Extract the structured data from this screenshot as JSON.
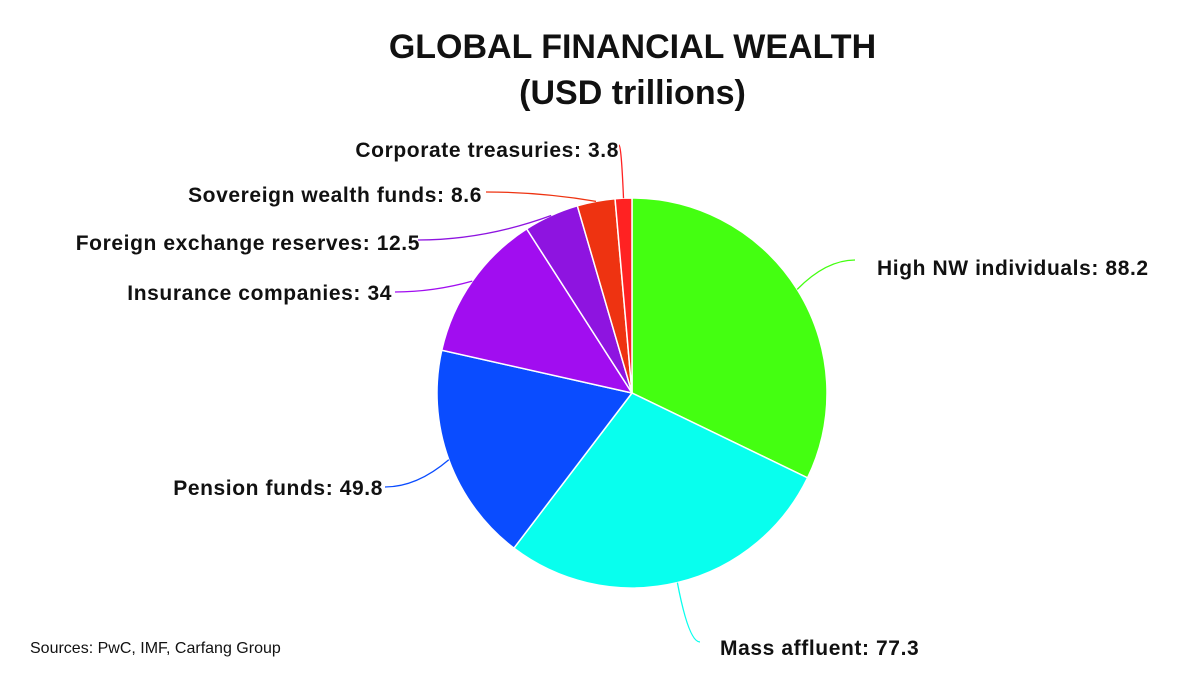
{
  "title": {
    "line1": "GLOBAL FINANCIAL WEALTH",
    "line2": "(USD trillions)"
  },
  "source": "Sources: PwC, IMF, Carfang Group",
  "chart_data": {
    "type": "pie",
    "title": "GLOBAL FINANCIAL WEALTH",
    "subtitle": "(USD trillions)",
    "slices": [
      {
        "name": "High NW individuals",
        "value": 88.2,
        "label": "High NW individuals: 88.2",
        "color": "#44ff11"
      },
      {
        "name": "Mass affluent",
        "value": 77.3,
        "label": "Mass affluent: 77.3",
        "color": "#08ffee"
      },
      {
        "name": "Pension funds",
        "value": 49.8,
        "label": "Pension funds: 49.8",
        "color": "#0a4cff"
      },
      {
        "name": "Insurance companies",
        "value": 34,
        "label": "Insurance companies: 34",
        "color": "#a10df0"
      },
      {
        "name": "Foreign exchange reserves",
        "value": 12.5,
        "label": "Foreign exchange reserves: 12.5",
        "color": "#8e14e0"
      },
      {
        "name": "Sovereign wealth funds",
        "value": 8.6,
        "label": "Sovereign wealth funds: 8.6",
        "color": "#ee3311"
      },
      {
        "name": "Corporate treasuries",
        "value": 3.8,
        "label": "Corporate treasuries: 3.8",
        "color": "#ff2222"
      }
    ]
  }
}
